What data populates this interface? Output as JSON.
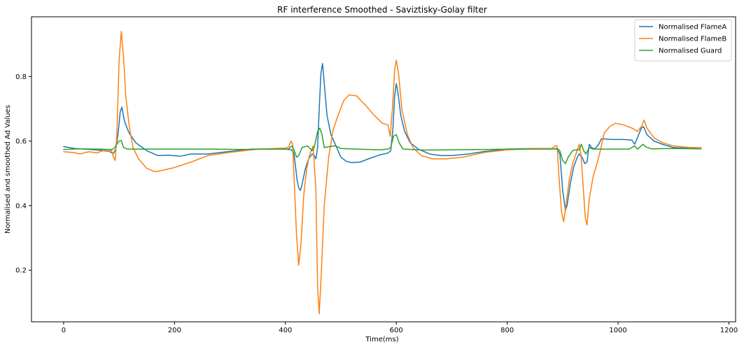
{
  "chart_data": {
    "type": "line",
    "title": "RF interference Smoothed - Saviztisky-Golay filter",
    "xlabel": "Time(ms)",
    "ylabel": "Normalised and smoothed Ad Values",
    "xlim": [
      -58,
      1212
    ],
    "ylim": [
      0.04,
      0.985
    ],
    "xticks": [
      0,
      200,
      400,
      600,
      800,
      1000,
      1200
    ],
    "yticks": [
      0.2,
      0.4,
      0.6,
      0.8
    ],
    "ytick_labels": [
      "0.2",
      "0.4",
      "0.6",
      "0.8"
    ],
    "grid": false,
    "legend_position": "top-right",
    "series": [
      {
        "name": "Normalised FlameA",
        "color": "#1f77b4",
        "points": [
          [
            0,
            0.583
          ],
          [
            20,
            0.577
          ],
          [
            40,
            0.575
          ],
          [
            60,
            0.572
          ],
          [
            80,
            0.57
          ],
          [
            85,
            0.565
          ],
          [
            90,
            0.562
          ],
          [
            94,
            0.575
          ],
          [
            98,
            0.62
          ],
          [
            102,
            0.69
          ],
          [
            105,
            0.705
          ],
          [
            110,
            0.66
          ],
          [
            118,
            0.625
          ],
          [
            130,
            0.595
          ],
          [
            150,
            0.57
          ],
          [
            170,
            0.555
          ],
          [
            190,
            0.556
          ],
          [
            210,
            0.553
          ],
          [
            230,
            0.56
          ],
          [
            260,
            0.56
          ],
          [
            300,
            0.568
          ],
          [
            340,
            0.575
          ],
          [
            380,
            0.575
          ],
          [
            400,
            0.575
          ],
          [
            410,
            0.573
          ],
          [
            415,
            0.565
          ],
          [
            418,
            0.525
          ],
          [
            421,
            0.48
          ],
          [
            424,
            0.455
          ],
          [
            427,
            0.447
          ],
          [
            430,
            0.465
          ],
          [
            436,
            0.515
          ],
          [
            442,
            0.545
          ],
          [
            448,
            0.56
          ],
          [
            452,
            0.555
          ],
          [
            455,
            0.545
          ],
          [
            458,
            0.58
          ],
          [
            461,
            0.7
          ],
          [
            464,
            0.81
          ],
          [
            467,
            0.84
          ],
          [
            470,
            0.78
          ],
          [
            475,
            0.68
          ],
          [
            482,
            0.62
          ],
          [
            490,
            0.59
          ],
          [
            500,
            0.55
          ],
          [
            510,
            0.537
          ],
          [
            520,
            0.533
          ],
          [
            535,
            0.535
          ],
          [
            550,
            0.545
          ],
          [
            570,
            0.557
          ],
          [
            585,
            0.563
          ],
          [
            590,
            0.57
          ],
          [
            594,
            0.64
          ],
          [
            597,
            0.74
          ],
          [
            600,
            0.778
          ],
          [
            603,
            0.75
          ],
          [
            608,
            0.68
          ],
          [
            615,
            0.63
          ],
          [
            625,
            0.595
          ],
          [
            640,
            0.575
          ],
          [
            660,
            0.56
          ],
          [
            680,
            0.555
          ],
          [
            700,
            0.555
          ],
          [
            730,
            0.56
          ],
          [
            760,
            0.568
          ],
          [
            800,
            0.575
          ],
          [
            850,
            0.577
          ],
          [
            880,
            0.576
          ],
          [
            890,
            0.575
          ],
          [
            895,
            0.56
          ],
          [
            900,
            0.45
          ],
          [
            905,
            0.385
          ],
          [
            908,
            0.4
          ],
          [
            914,
            0.47
          ],
          [
            920,
            0.52
          ],
          [
            926,
            0.548
          ],
          [
            930,
            0.56
          ],
          [
            935,
            0.55
          ],
          [
            940,
            0.53
          ],
          [
            944,
            0.535
          ],
          [
            948,
            0.59
          ],
          [
            952,
            0.58
          ],
          [
            958,
            0.575
          ],
          [
            965,
            0.59
          ],
          [
            970,
            0.607
          ],
          [
            990,
            0.605
          ],
          [
            1010,
            0.605
          ],
          [
            1025,
            0.603
          ],
          [
            1030,
            0.59
          ],
          [
            1036,
            0.615
          ],
          [
            1042,
            0.64
          ],
          [
            1046,
            0.645
          ],
          [
            1052,
            0.62
          ],
          [
            1065,
            0.6
          ],
          [
            1080,
            0.59
          ],
          [
            1100,
            0.58
          ],
          [
            1120,
            0.578
          ],
          [
            1150,
            0.576
          ]
        ]
      },
      {
        "name": "Normalised FlameB",
        "color": "#ff7f0e",
        "points": [
          [
            0,
            0.567
          ],
          [
            15,
            0.565
          ],
          [
            30,
            0.56
          ],
          [
            45,
            0.567
          ],
          [
            60,
            0.563
          ],
          [
            70,
            0.57
          ],
          [
            80,
            0.568
          ],
          [
            86,
            0.572
          ],
          [
            90,
            0.55
          ],
          [
            93,
            0.54
          ],
          [
            96,
            0.62
          ],
          [
            100,
            0.85
          ],
          [
            104,
            0.94
          ],
          [
            108,
            0.86
          ],
          [
            112,
            0.74
          ],
          [
            118,
            0.65
          ],
          [
            125,
            0.58
          ],
          [
            135,
            0.545
          ],
          [
            150,
            0.515
          ],
          [
            165,
            0.505
          ],
          [
            180,
            0.51
          ],
          [
            200,
            0.518
          ],
          [
            230,
            0.535
          ],
          [
            260,
            0.555
          ],
          [
            300,
            0.565
          ],
          [
            350,
            0.575
          ],
          [
            400,
            0.578
          ],
          [
            406,
            0.582
          ],
          [
            410,
            0.6
          ],
          [
            413,
            0.59
          ],
          [
            416,
            0.47
          ],
          [
            420,
            0.31
          ],
          [
            424,
            0.215
          ],
          [
            428,
            0.28
          ],
          [
            433,
            0.43
          ],
          [
            438,
            0.51
          ],
          [
            444,
            0.56
          ],
          [
            450,
            0.585
          ],
          [
            455,
            0.45
          ],
          [
            458,
            0.15
          ],
          [
            461,
            0.065
          ],
          [
            465,
            0.2
          ],
          [
            470,
            0.4
          ],
          [
            478,
            0.55
          ],
          [
            486,
            0.635
          ],
          [
            495,
            0.68
          ],
          [
            505,
            0.725
          ],
          [
            515,
            0.743
          ],
          [
            528,
            0.74
          ],
          [
            545,
            0.71
          ],
          [
            560,
            0.68
          ],
          [
            575,
            0.655
          ],
          [
            585,
            0.65
          ],
          [
            589,
            0.615
          ],
          [
            593,
            0.7
          ],
          [
            597,
            0.82
          ],
          [
            600,
            0.85
          ],
          [
            604,
            0.81
          ],
          [
            610,
            0.7
          ],
          [
            620,
            0.62
          ],
          [
            630,
            0.58
          ],
          [
            645,
            0.555
          ],
          [
            665,
            0.545
          ],
          [
            690,
            0.545
          ],
          [
            720,
            0.55
          ],
          [
            760,
            0.565
          ],
          [
            800,
            0.573
          ],
          [
            850,
            0.577
          ],
          [
            880,
            0.577
          ],
          [
            887,
            0.585
          ],
          [
            890,
            0.585
          ],
          [
            893,
            0.5
          ],
          [
            898,
            0.38
          ],
          [
            902,
            0.35
          ],
          [
            906,
            0.4
          ],
          [
            912,
            0.48
          ],
          [
            918,
            0.53
          ],
          [
            924,
            0.56
          ],
          [
            930,
            0.59
          ],
          [
            933,
            0.56
          ],
          [
            937,
            0.46
          ],
          [
            941,
            0.36
          ],
          [
            944,
            0.34
          ],
          [
            948,
            0.42
          ],
          [
            955,
            0.49
          ],
          [
            962,
            0.53
          ],
          [
            968,
            0.57
          ],
          [
            975,
            0.625
          ],
          [
            985,
            0.645
          ],
          [
            995,
            0.655
          ],
          [
            1010,
            0.65
          ],
          [
            1025,
            0.64
          ],
          [
            1035,
            0.63
          ],
          [
            1042,
            0.645
          ],
          [
            1047,
            0.665
          ],
          [
            1052,
            0.64
          ],
          [
            1065,
            0.61
          ],
          [
            1080,
            0.595
          ],
          [
            1100,
            0.585
          ],
          [
            1130,
            0.58
          ],
          [
            1150,
            0.58
          ]
        ]
      },
      {
        "name": "Normalised Guard",
        "color": "#2ca02c",
        "points": [
          [
            0,
            0.574
          ],
          [
            30,
            0.576
          ],
          [
            60,
            0.575
          ],
          [
            88,
            0.574
          ],
          [
            92,
            0.58
          ],
          [
            96,
            0.59
          ],
          [
            100,
            0.6
          ],
          [
            104,
            0.602
          ],
          [
            108,
            0.58
          ],
          [
            115,
            0.575
          ],
          [
            140,
            0.575
          ],
          [
            200,
            0.575
          ],
          [
            260,
            0.575
          ],
          [
            320,
            0.574
          ],
          [
            380,
            0.575
          ],
          [
            405,
            0.575
          ],
          [
            412,
            0.585
          ],
          [
            416,
            0.57
          ],
          [
            420,
            0.55
          ],
          [
            424,
            0.555
          ],
          [
            430,
            0.58
          ],
          [
            440,
            0.585
          ],
          [
            448,
            0.57
          ],
          [
            452,
            0.58
          ],
          [
            458,
            0.63
          ],
          [
            462,
            0.64
          ],
          [
            466,
            0.62
          ],
          [
            470,
            0.58
          ],
          [
            480,
            0.583
          ],
          [
            490,
            0.585
          ],
          [
            500,
            0.577
          ],
          [
            530,
            0.575
          ],
          [
            570,
            0.573
          ],
          [
            585,
            0.575
          ],
          [
            590,
            0.58
          ],
          [
            595,
            0.615
          ],
          [
            600,
            0.62
          ],
          [
            605,
            0.595
          ],
          [
            612,
            0.575
          ],
          [
            650,
            0.572
          ],
          [
            700,
            0.573
          ],
          [
            760,
            0.574
          ],
          [
            820,
            0.575
          ],
          [
            880,
            0.575
          ],
          [
            890,
            0.577
          ],
          [
            895,
            0.57
          ],
          [
            900,
            0.54
          ],
          [
            905,
            0.53
          ],
          [
            910,
            0.55
          ],
          [
            918,
            0.57
          ],
          [
            924,
            0.573
          ],
          [
            930,
            0.573
          ],
          [
            934,
            0.59
          ],
          [
            938,
            0.57
          ],
          [
            942,
            0.56
          ],
          [
            948,
            0.58
          ],
          [
            955,
            0.575
          ],
          [
            980,
            0.575
          ],
          [
            1020,
            0.575
          ],
          [
            1030,
            0.585
          ],
          [
            1035,
            0.575
          ],
          [
            1045,
            0.59
          ],
          [
            1050,
            0.582
          ],
          [
            1060,
            0.576
          ],
          [
            1100,
            0.577
          ],
          [
            1150,
            0.576
          ]
        ]
      }
    ]
  }
}
